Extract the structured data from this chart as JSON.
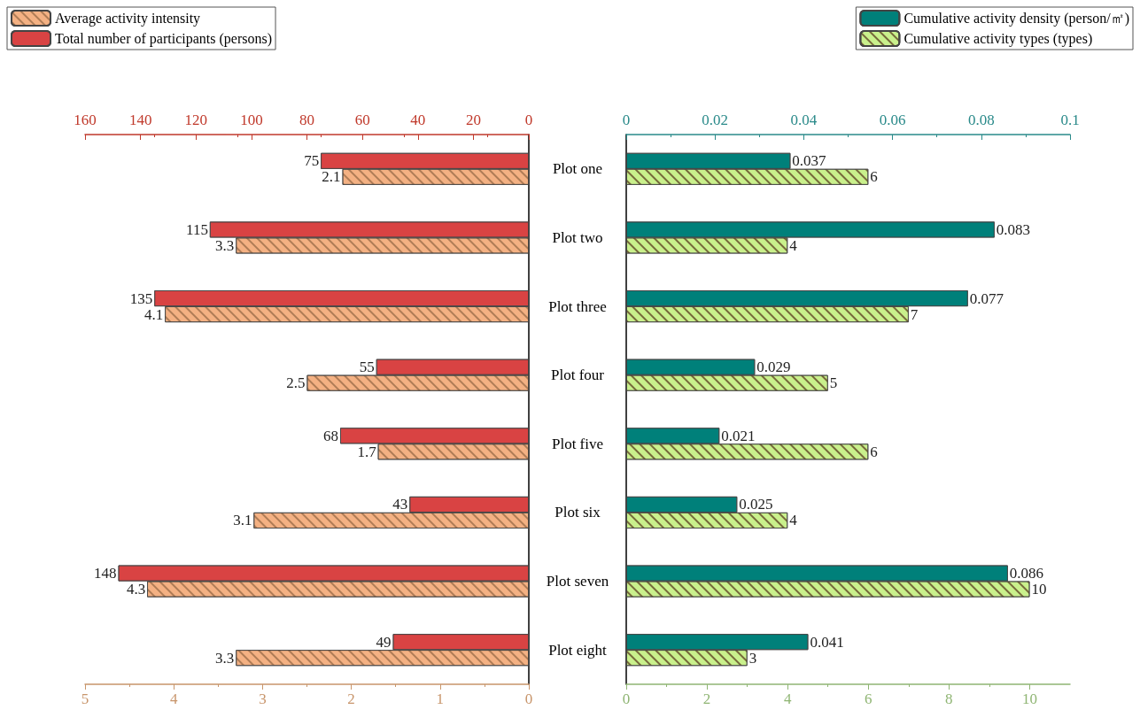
{
  "chart_data": [
    {
      "type": "bar",
      "orientation": "horizontal",
      "categories": [
        "Plot one",
        "Plot two",
        "Plot three",
        "Plot four",
        "Plot five",
        "Plot six",
        "Plot seven",
        "Plot eight"
      ],
      "series": [
        {
          "name": "Average activity intensity",
          "color": "#f4b183",
          "values": [
            2.1,
            3.3,
            4.1,
            2.5,
            1.7,
            3.1,
            4.3,
            3.3
          ]
        },
        {
          "name": "Total number of participants (persons)",
          "color": "#d94343",
          "axis": "x2",
          "values": [
            75,
            115,
            135,
            55,
            68,
            43,
            148,
            49
          ]
        }
      ],
      "xlim": [
        5,
        0
      ],
      "xticks": [
        5,
        4,
        3,
        2,
        1,
        0
      ],
      "x2lim": [
        160,
        0
      ],
      "x2ticks": [
        160,
        140,
        120,
        100,
        80,
        60,
        40,
        20,
        0
      ],
      "data_labels": true,
      "legend": "top left",
      "grid": false
    },
    {
      "type": "bar",
      "orientation": "horizontal",
      "categories": [
        null,
        null,
        null,
        null,
        null,
        null,
        null,
        null
      ],
      "series": [
        {
          "name": "Cumulative activity density (person/㎡)",
          "color": "#00807a",
          "axis": "x2",
          "values": [
            0.037,
            0.083,
            0.077,
            0.029,
            0.021,
            0.025,
            0.086,
            0.041
          ]
        },
        {
          "name": "Cumulative activity types (types)",
          "color": "#c9f08c",
          "values": [
            6,
            4,
            7,
            5,
            6,
            4,
            10,
            3
          ]
        }
      ],
      "xlim": [
        0,
        11
      ],
      "xticks": [
        0,
        2,
        4,
        6,
        8,
        10
      ],
      "x2lim": [
        0,
        0.1
      ],
      "x2ticks": [
        0,
        0.02,
        0.04,
        0.06,
        0.08,
        0.1
      ],
      "data_labels": true,
      "legend": "top right",
      "grid": false,
      "tick_labels": "x"
    }
  ]
}
